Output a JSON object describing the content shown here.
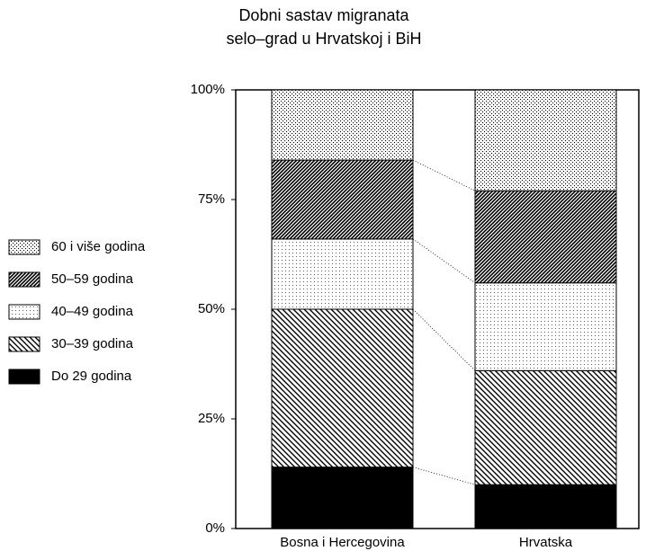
{
  "chart_data": {
    "type": "stacked_bar",
    "title": "Dobni sastav migranata",
    "subtitle": "selo–grad u Hrvatskoj i BiH",
    "categories": [
      "Bosna i Hercegovina",
      "Hrvatska"
    ],
    "series": [
      {
        "name": "Do 29 godina",
        "color": "#000000",
        "pattern": "solid",
        "values": [
          14,
          10
        ]
      },
      {
        "name": "30–39 godina",
        "color": "#000000",
        "pattern": "hatch-back",
        "values": [
          36,
          26
        ]
      },
      {
        "name": "40–49 godina",
        "color": "#000000",
        "pattern": "dots-light",
        "values": [
          16,
          20
        ]
      },
      {
        "name": "50–59 godina",
        "color": "#000000",
        "pattern": "hatch-dense",
        "values": [
          18,
          21
        ]
      },
      {
        "name": "60 i više godina",
        "color": "#000000",
        "pattern": "dots",
        "values": [
          16,
          23
        ]
      }
    ],
    "ylim": [
      0,
      100
    ],
    "yticks": [
      {
        "value": 0,
        "label": "0%"
      },
      {
        "value": 25,
        "label": "25%"
      },
      {
        "value": 50,
        "label": "50%"
      },
      {
        "value": 75,
        "label": "75%"
      },
      {
        "value": 100,
        "label": "100%"
      }
    ],
    "grid": false
  }
}
